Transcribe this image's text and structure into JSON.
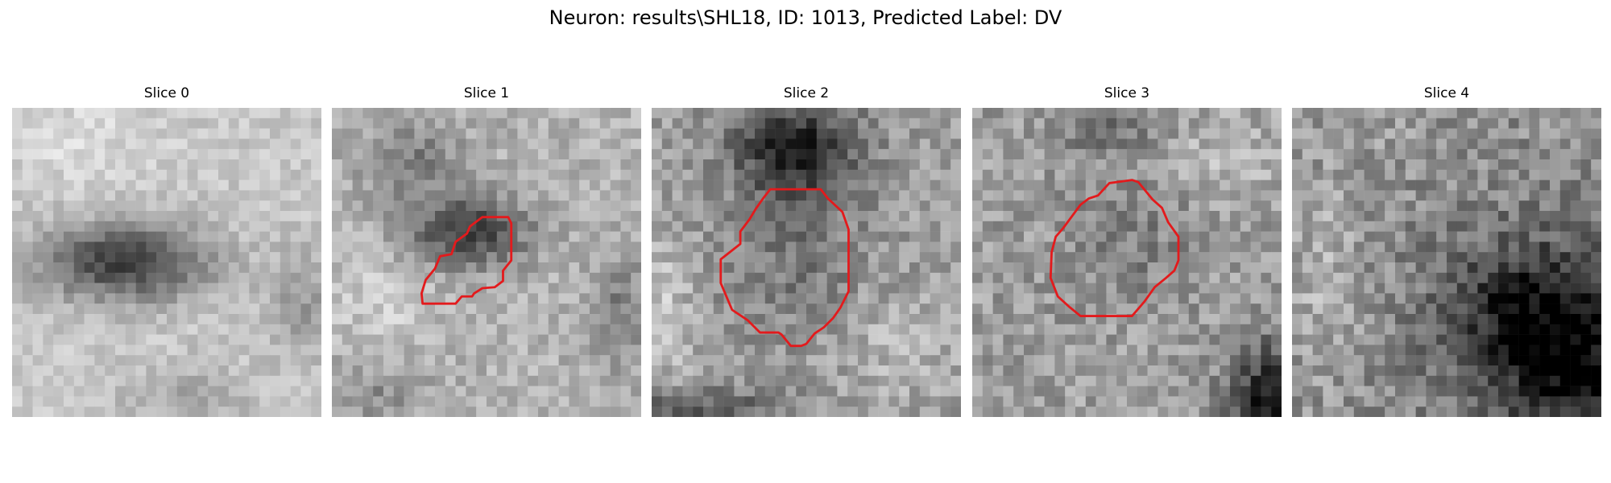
{
  "figure": {
    "title": "Neuron: results\\SHL18, ID: 1013, Predicted Label: DV"
  },
  "contour_color": "#e31a1c",
  "panels": [
    {
      "title": "Slice 0"
    },
    {
      "title": "Slice 1"
    },
    {
      "title": "Slice 2"
    },
    {
      "title": "Slice 3"
    },
    {
      "title": "Slice 4"
    }
  ]
}
